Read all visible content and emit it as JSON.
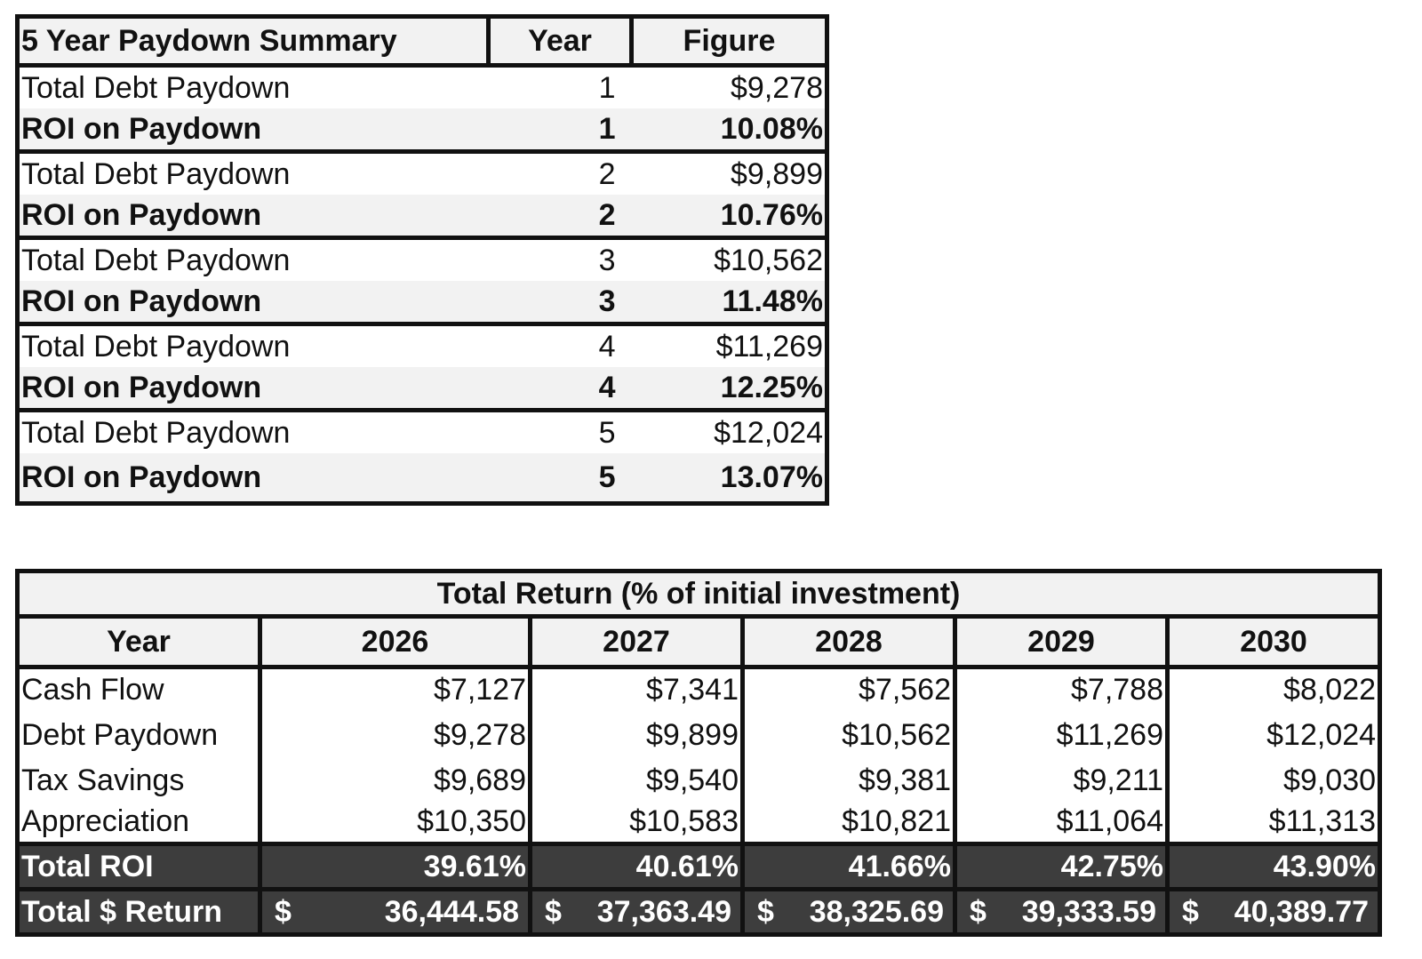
{
  "paydown_summary": {
    "headers": {
      "label": "5 Year Paydown Summary",
      "year": "Year",
      "figure": "Figure"
    },
    "rows": [
      {
        "paydown_label": "Total Debt Paydown",
        "year": "1",
        "paydown": "$9,278",
        "roi_label": "ROI on Paydown",
        "roi": "10.08%"
      },
      {
        "paydown_label": "Total Debt Paydown",
        "year": "2",
        "paydown": "$9,899",
        "roi_label": "ROI on Paydown",
        "roi": "10.76%"
      },
      {
        "paydown_label": "Total Debt Paydown",
        "year": "3",
        "paydown": "$10,562",
        "roi_label": "ROI on Paydown",
        "roi": "11.48%"
      },
      {
        "paydown_label": "Total Debt Paydown",
        "year": "4",
        "paydown": "$11,269",
        "roi_label": "ROI on Paydown",
        "roi": "12.25%"
      },
      {
        "paydown_label": "Total Debt Paydown",
        "year": "5",
        "paydown": "$12,024",
        "roi_label": "ROI on Paydown",
        "roi": "13.07%"
      }
    ]
  },
  "total_return": {
    "title": "Total Return (% of initial investment)",
    "year_label": "Year",
    "years": [
      "2026",
      "2027",
      "2028",
      "2029",
      "2030"
    ],
    "rows": [
      {
        "label": "Cash Flow",
        "values": [
          "$7,127",
          "$7,341",
          "$7,562",
          "$7,788",
          "$8,022"
        ]
      },
      {
        "label": "Debt Paydown",
        "values": [
          "$9,278",
          "$9,899",
          "$10,562",
          "$11,269",
          "$12,024"
        ]
      },
      {
        "label": "Tax Savings",
        "values": [
          "$9,689",
          "$9,540",
          "$9,381",
          "$9,211",
          "$9,030"
        ]
      },
      {
        "label": "Appreciation",
        "values": [
          "$10,350",
          "$10,583",
          "$10,821",
          "$11,064",
          "$11,313"
        ]
      }
    ],
    "total_roi": {
      "label": "Total ROI",
      "values": [
        "39.61%",
        "40.61%",
        "41.66%",
        "42.75%",
        "43.90%"
      ]
    },
    "total_dollar": {
      "label": "Total $ Return",
      "currency": "$",
      "values": [
        "36,444.58",
        "37,363.49",
        "38,325.69",
        "39,333.59",
        "40,389.77"
      ]
    }
  }
}
